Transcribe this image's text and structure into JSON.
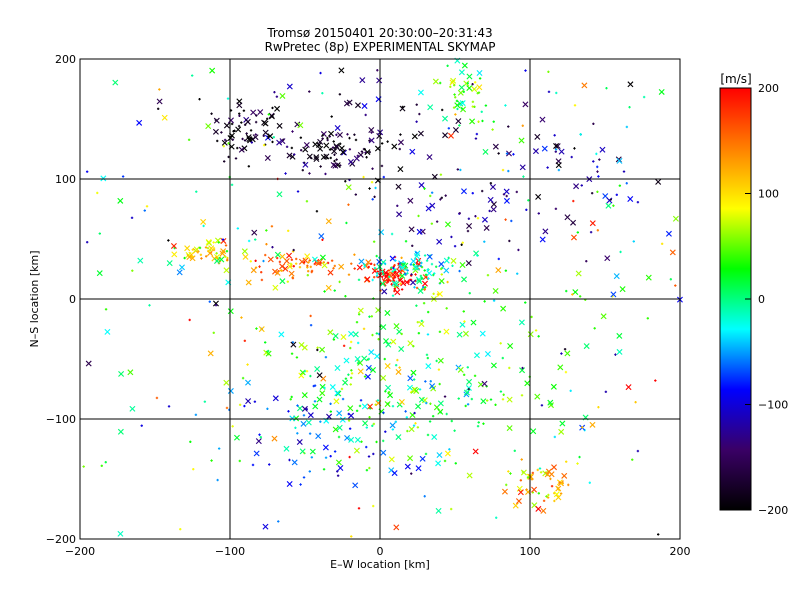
{
  "chart_data": {
    "type": "scatter",
    "title": "Tromsø 20150401 20:30:00–20:31:43",
    "subtitle": "RwPretec (8p) EXPERIMENTAL SKYMAP",
    "xlabel": "E–W location [km]",
    "ylabel": "N–S location [km]",
    "xlim": [
      -200,
      200
    ],
    "ylim": [
      -200,
      200
    ],
    "x_ticks": [
      -200,
      -100,
      0,
      100,
      200
    ],
    "y_ticks": [
      -200,
      -100,
      0,
      100,
      200
    ],
    "grid": true,
    "markers": [
      "x",
      "+"
    ],
    "colorbar": {
      "label": "[m/s]",
      "min": -200,
      "max": 200,
      "ticks": [
        -200,
        -100,
        0,
        100,
        200
      ],
      "colors": [
        "#000000",
        "#3a0066",
        "#0000ff",
        "#00ffff",
        "#00ff00",
        "#ffff00",
        "#ff8000",
        "#ff0000"
      ]
    },
    "clusters": [
      {
        "x": -85,
        "y": 140,
        "sx": 14,
        "sy": 12,
        "v": -190,
        "n": 60
      },
      {
        "x": -30,
        "y": 125,
        "sx": 16,
        "sy": 8,
        "v": -190,
        "n": 70
      },
      {
        "x": 55,
        "y": 175,
        "sx": 10,
        "sy": 15,
        "v": 40,
        "n": 50
      },
      {
        "x": -115,
        "y": 38,
        "sx": 10,
        "sy": 6,
        "v": 100,
        "n": 45
      },
      {
        "x": -50,
        "y": 28,
        "sx": 18,
        "sy": 6,
        "v": 150,
        "n": 70
      },
      {
        "x": 10,
        "y": 18,
        "sx": 10,
        "sy": 6,
        "v": 195,
        "n": 90
      },
      {
        "x": 25,
        "y": 25,
        "sx": 16,
        "sy": 8,
        "v": -20,
        "n": 90
      },
      {
        "x": 100,
        "y": 85,
        "sx": 45,
        "sy": 30,
        "v": -120,
        "n": 80
      },
      {
        "x": 20,
        "y": -60,
        "sx": 55,
        "sy": 45,
        "v": 30,
        "n": 260
      },
      {
        "x": -30,
        "y": -110,
        "sx": 40,
        "sy": 30,
        "v": -60,
        "n": 90
      },
      {
        "x": 110,
        "y": -155,
        "sx": 12,
        "sy": 10,
        "v": 120,
        "n": 50
      },
      {
        "x": 0,
        "y": 140,
        "sx": 60,
        "sy": 35,
        "v": -170,
        "n": 90
      },
      {
        "x": 0,
        "y": 0,
        "sx": 150,
        "sy": 130,
        "v": 0,
        "n": 400
      }
    ]
  }
}
